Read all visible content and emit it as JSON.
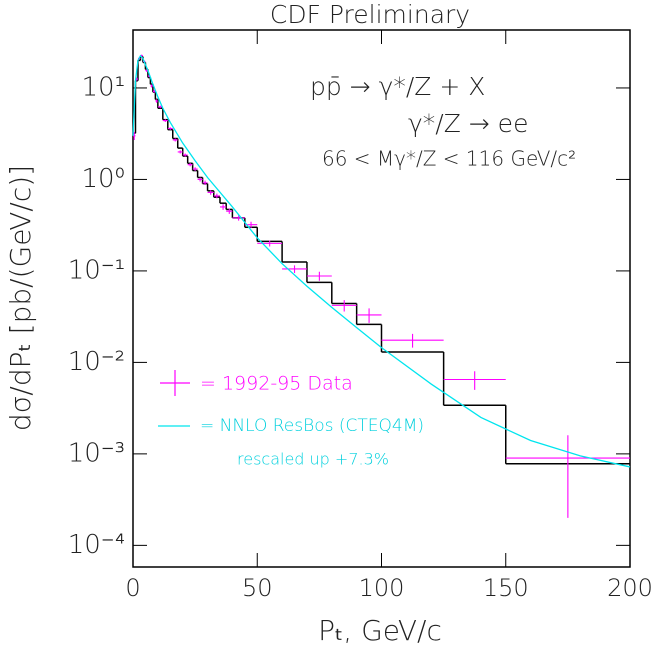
{
  "chart_data": {
    "type": "combo",
    "title": "CDF Preliminary",
    "x_label": "Pₜ, GeV/c",
    "y_label": "dσ/dPₜ [pb/(GeV/c)]",
    "annotations": [
      "pp̄ → γ*/Z + X",
      "γ*/Z → ee",
      "66 < Mγ*/Z < 116 GeV/c²"
    ],
    "xlim": [
      0,
      200
    ],
    "xticks": [
      0,
      50,
      100,
      150,
      200
    ],
    "yscale": "log",
    "ylim": [
      5.8e-05,
      43
    ],
    "yticks": [
      {
        "value": 0.0001,
        "label": "10⁻⁴"
      },
      {
        "value": 0.001,
        "label": "10⁻³"
      },
      {
        "value": 0.01,
        "label": "10⁻²"
      },
      {
        "value": 0.1,
        "label": "10⁻¹"
      },
      {
        "value": 1,
        "label": "10⁰"
      },
      {
        "value": 10,
        "label": "10¹"
      }
    ],
    "histogram": {
      "type": "histogram",
      "color": "#000000",
      "bins": [
        0,
        1,
        2,
        3,
        4,
        5,
        6,
        7,
        8,
        9,
        10,
        12,
        14,
        16,
        18,
        20,
        22,
        24,
        26,
        28,
        30,
        32.5,
        35,
        37.5,
        40,
        45,
        50,
        60,
        70,
        80,
        90,
        100,
        125,
        150,
        200
      ],
      "counts": [
        3.2,
        12,
        20,
        22,
        19,
        16,
        13,
        11,
        9,
        7.5,
        6,
        4.5,
        3.5,
        2.8,
        2.2,
        1.8,
        1.5,
        1.25,
        1.05,
        0.9,
        0.75,
        0.64,
        0.55,
        0.47,
        0.38,
        0.3,
        0.21,
        0.125,
        0.075,
        0.044,
        0.026,
        0.013,
        0.0034,
        0.00078
      ]
    },
    "series": [
      {
        "name": "= 1992-95 Data",
        "type": "errorbar",
        "color": "#ff00ff",
        "x": [
          0.5,
          1.5,
          2.5,
          3.5,
          4.5,
          5.5,
          6.5,
          7.5,
          8.5,
          9.5,
          11,
          13,
          15,
          17,
          19,
          21,
          23,
          25,
          27,
          29,
          31.25,
          33.75,
          36.25,
          38.75,
          42.5,
          47.5,
          55,
          65,
          75,
          85,
          95,
          112.5,
          137.5,
          175
        ],
        "xerr": [
          0.5,
          0.5,
          0.5,
          0.5,
          0.5,
          0.5,
          0.5,
          0.5,
          0.5,
          0.5,
          1,
          1,
          1,
          1,
          1,
          1,
          1,
          1,
          1,
          1,
          1.25,
          1.25,
          1.25,
          1.25,
          2.5,
          2.5,
          5,
          5,
          5,
          5,
          5,
          12.5,
          12.5,
          25
        ],
        "values": [
          3.0,
          12.5,
          21,
          22.5,
          19.5,
          15.5,
          13.5,
          10.5,
          9.2,
          7.2,
          6.2,
          4.4,
          3.6,
          2.7,
          2.0,
          1.85,
          1.45,
          1.3,
          1.0,
          0.92,
          0.72,
          0.66,
          0.5,
          0.45,
          0.38,
          0.32,
          0.2,
          0.105,
          0.088,
          0.042,
          0.033,
          0.0175,
          0.0065,
          0.0009
        ],
        "yerr": [
          0.3,
          0.5,
          0.6,
          0.6,
          0.5,
          0.5,
          0.4,
          0.4,
          0.35,
          0.3,
          0.2,
          0.15,
          0.12,
          0.1,
          0.08,
          0.07,
          0.06,
          0.06,
          0.05,
          0.05,
          0.04,
          0.04,
          0.035,
          0.03,
          0.025,
          0.025,
          0.015,
          0.01,
          0.01,
          0.006,
          0.006,
          0.003,
          0.0015,
          0.0007
        ]
      },
      {
        "name": "= NNLO ResBos (CTEQ4M)",
        "note": "rescaled up +7.3%",
        "type": "line",
        "color": "#00e5ee",
        "x": [
          0,
          1,
          2,
          3,
          4,
          5,
          6,
          8,
          10,
          12,
          15,
          20,
          25,
          30,
          40,
          50,
          60,
          70,
          80,
          90,
          100,
          120,
          140,
          160,
          180,
          200
        ],
        "values": [
          3,
          12,
          20,
          22.5,
          21,
          18,
          15.5,
          11,
          8,
          6,
          4.2,
          2.5,
          1.6,
          1.05,
          0.5,
          0.23,
          0.12,
          0.068,
          0.04,
          0.024,
          0.0145,
          0.0058,
          0.0025,
          0.0014,
          0.00095,
          0.00072
        ]
      }
    ]
  }
}
